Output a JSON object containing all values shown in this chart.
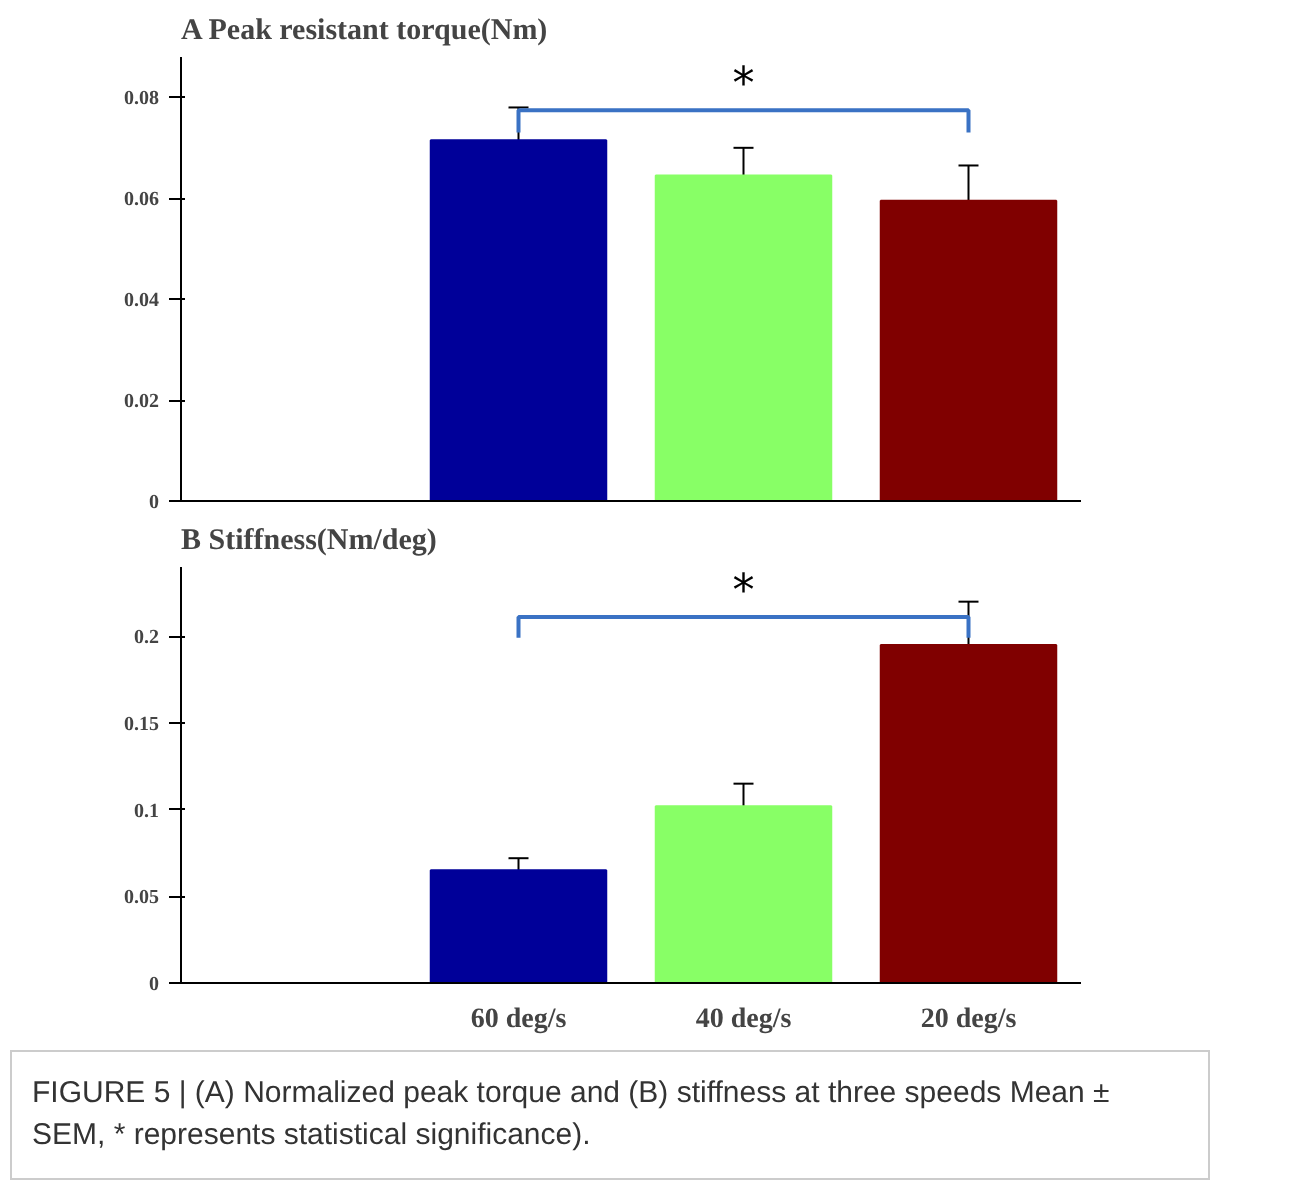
{
  "chart_data": [
    {
      "type": "bar",
      "title": "A Peak resistant torque(Nm)",
      "categories": [
        null,
        null,
        null,
        null
      ],
      "tick_labels": "y",
      "grid": false,
      "values": [
        null,
        0.0715,
        0.0645,
        0.0595
      ],
      "colors": [
        "#000099",
        "#000099",
        "#88ff66",
        "#800000"
      ],
      "errors": [
        null,
        0.0065,
        0.0055,
        0.007
      ],
      "ylim": [
        0,
        0.088
      ],
      "yticks": [
        0,
        0.02,
        0.04,
        0.06,
        0.08
      ],
      "annotations": [
        "*"
      ]
    },
    {
      "type": "bar",
      "title": "B Stiffness(Nm/deg)",
      "categories": [
        null,
        "60 deg/s",
        "40 deg/s",
        "20 deg/s"
      ],
      "grid": false,
      "values": [
        null,
        0.065,
        0.102,
        0.195
      ],
      "colors": [
        "#000099",
        "#000099",
        "#88ff66",
        "#800000"
      ],
      "errors": [
        null,
        0.007,
        0.013,
        0.025
      ],
      "ylim": [
        0,
        0.24
      ],
      "yticks": [
        0,
        0.05,
        0.1,
        0.15,
        0.2
      ],
      "annotations": [
        "*",
        "FIGURE 5 | (A) Normalized peak torque and (B) stiffness at three speeds Mean ± SEM, * represents statistical significance)."
      ]
    }
  ]
}
